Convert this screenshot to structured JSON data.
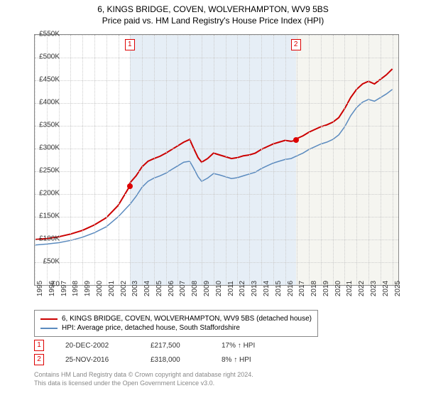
{
  "title": "6, KINGS BRIDGE, COVEN, WOLVERHAMPTON, WV9 5BS",
  "subtitle": "Price paid vs. HM Land Registry's House Price Index (HPI)",
  "chart": {
    "type": "line",
    "xlim": [
      1995,
      2025.5
    ],
    "ylim": [
      0,
      550000
    ],
    "y_ticks": [
      0,
      50000,
      100000,
      150000,
      200000,
      250000,
      300000,
      350000,
      400000,
      450000,
      500000,
      550000
    ],
    "y_tick_labels": [
      "£0",
      "£50K",
      "£100K",
      "£150K",
      "£200K",
      "£250K",
      "£300K",
      "£350K",
      "£400K",
      "£450K",
      "£500K",
      "£550K"
    ],
    "x_ticks": [
      1995,
      1996,
      1997,
      1998,
      1999,
      2000,
      2001,
      2002,
      2003,
      2004,
      2005,
      2006,
      2007,
      2008,
      2009,
      2010,
      2011,
      2012,
      2013,
      2014,
      2015,
      2016,
      2017,
      2018,
      2019,
      2020,
      2021,
      2022,
      2023,
      2024,
      2025
    ],
    "background_color": "#ffffff",
    "grid_color": "#cccccc",
    "axis_fontsize": 10,
    "bands": [
      {
        "from": 2002.97,
        "to": 2016.9,
        "color": "#e6eef6"
      },
      {
        "from": 2016.9,
        "to": 2025.5,
        "color": "#f5f5f0"
      }
    ],
    "series": [
      {
        "name": "property",
        "label": "6, KINGS BRIDGE, COVEN, WOLVERHAMPTON, WV9 5BS (detached house)",
        "color": "#cc0000",
        "line_width": 2,
        "points": [
          [
            1995,
            100000
          ],
          [
            1996,
            102000
          ],
          [
            1997,
            106000
          ],
          [
            1998,
            112000
          ],
          [
            1999,
            120000
          ],
          [
            2000,
            132000
          ],
          [
            2001,
            148000
          ],
          [
            2002,
            175000
          ],
          [
            2002.97,
            217500
          ],
          [
            2003,
            225000
          ],
          [
            2003.5,
            240000
          ],
          [
            2004,
            260000
          ],
          [
            2004.5,
            272000
          ],
          [
            2005,
            278000
          ],
          [
            2005.5,
            283000
          ],
          [
            2006,
            290000
          ],
          [
            2006.5,
            298000
          ],
          [
            2007,
            306000
          ],
          [
            2007.5,
            314000
          ],
          [
            2008,
            320000
          ],
          [
            2008.3,
            302000
          ],
          [
            2008.7,
            280000
          ],
          [
            2009,
            270000
          ],
          [
            2009.5,
            278000
          ],
          [
            2010,
            290000
          ],
          [
            2010.5,
            286000
          ],
          [
            2011,
            282000
          ],
          [
            2011.5,
            278000
          ],
          [
            2012,
            280000
          ],
          [
            2012.5,
            284000
          ],
          [
            2013,
            286000
          ],
          [
            2013.5,
            290000
          ],
          [
            2014,
            298000
          ],
          [
            2014.5,
            304000
          ],
          [
            2015,
            310000
          ],
          [
            2015.5,
            314000
          ],
          [
            2016,
            318000
          ],
          [
            2016.5,
            316000
          ],
          [
            2016.9,
            318000
          ],
          [
            2017,
            322000
          ],
          [
            2017.5,
            328000
          ],
          [
            2018,
            336000
          ],
          [
            2018.5,
            342000
          ],
          [
            2019,
            348000
          ],
          [
            2019.5,
            352000
          ],
          [
            2020,
            358000
          ],
          [
            2020.5,
            368000
          ],
          [
            2021,
            388000
          ],
          [
            2021.5,
            412000
          ],
          [
            2022,
            430000
          ],
          [
            2022.5,
            442000
          ],
          [
            2023,
            448000
          ],
          [
            2023.5,
            442000
          ],
          [
            2024,
            452000
          ],
          [
            2024.5,
            462000
          ],
          [
            2025,
            475000
          ]
        ]
      },
      {
        "name": "hpi",
        "label": "HPI: Average price, detached house, South Staffordshire",
        "color": "#5b8bbf",
        "line_width": 1.5,
        "points": [
          [
            1995,
            88000
          ],
          [
            1996,
            90000
          ],
          [
            1997,
            93000
          ],
          [
            1998,
            98000
          ],
          [
            1999,
            105000
          ],
          [
            2000,
            115000
          ],
          [
            2001,
            128000
          ],
          [
            2002,
            150000
          ],
          [
            2003,
            178000
          ],
          [
            2003.5,
            195000
          ],
          [
            2004,
            215000
          ],
          [
            2004.5,
            228000
          ],
          [
            2005,
            235000
          ],
          [
            2005.5,
            240000
          ],
          [
            2006,
            246000
          ],
          [
            2006.5,
            254000
          ],
          [
            2007,
            262000
          ],
          [
            2007.5,
            270000
          ],
          [
            2008,
            272000
          ],
          [
            2008.3,
            258000
          ],
          [
            2008.7,
            238000
          ],
          [
            2009,
            228000
          ],
          [
            2009.5,
            235000
          ],
          [
            2010,
            245000
          ],
          [
            2010.5,
            242000
          ],
          [
            2011,
            238000
          ],
          [
            2011.5,
            234000
          ],
          [
            2012,
            236000
          ],
          [
            2012.5,
            240000
          ],
          [
            2013,
            244000
          ],
          [
            2013.5,
            248000
          ],
          [
            2014,
            256000
          ],
          [
            2014.5,
            262000
          ],
          [
            2015,
            268000
          ],
          [
            2015.5,
            272000
          ],
          [
            2016,
            276000
          ],
          [
            2016.5,
            278000
          ],
          [
            2017,
            284000
          ],
          [
            2017.5,
            290000
          ],
          [
            2018,
            298000
          ],
          [
            2018.5,
            304000
          ],
          [
            2019,
            310000
          ],
          [
            2019.5,
            314000
          ],
          [
            2020,
            320000
          ],
          [
            2020.5,
            330000
          ],
          [
            2021,
            348000
          ],
          [
            2021.5,
            372000
          ],
          [
            2022,
            390000
          ],
          [
            2022.5,
            402000
          ],
          [
            2023,
            408000
          ],
          [
            2023.5,
            404000
          ],
          [
            2024,
            412000
          ],
          [
            2024.5,
            420000
          ],
          [
            2025,
            430000
          ]
        ]
      }
    ],
    "sale_markers": [
      {
        "id": "1",
        "x": 2002.97,
        "y": 217500
      },
      {
        "id": "2",
        "x": 2016.9,
        "y": 318000
      }
    ]
  },
  "legend": {
    "items": [
      {
        "color": "#cc0000",
        "label": "6, KINGS BRIDGE, COVEN, WOLVERHAMPTON, WV9 5BS (detached house)"
      },
      {
        "color": "#5b8bbf",
        "label": "HPI: Average price, detached house, South Staffordshire"
      }
    ]
  },
  "sales": [
    {
      "marker": "1",
      "date": "20-DEC-2002",
      "price": "£217,500",
      "delta": "17% ↑ HPI"
    },
    {
      "marker": "2",
      "date": "25-NOV-2016",
      "price": "£318,000",
      "delta": "8% ↑ HPI"
    }
  ],
  "footer": {
    "line1": "Contains HM Land Registry data © Crown copyright and database right 2024.",
    "line2": "This data is licensed under the Open Government Licence v3.0."
  }
}
